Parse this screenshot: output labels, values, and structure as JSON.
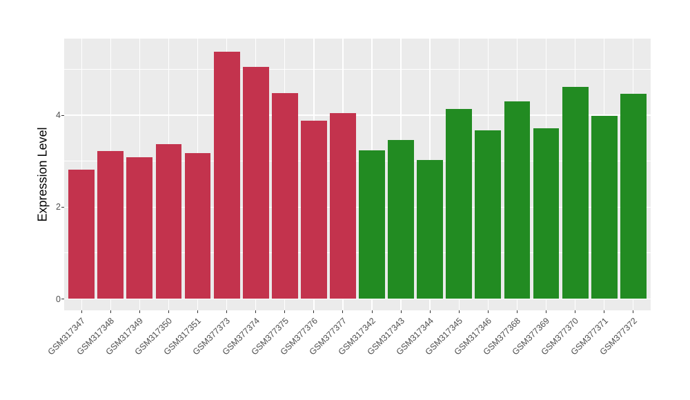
{
  "chart_data": {
    "type": "bar",
    "title": "",
    "xlabel": "",
    "ylabel": "Expression Level",
    "categories": [
      "GSM317347",
      "GSM317348",
      "GSM317349",
      "GSM317350",
      "GSM317351",
      "GSM377373",
      "GSM377374",
      "GSM377375",
      "GSM377376",
      "GSM377377",
      "GSM317342",
      "GSM317343",
      "GSM317344",
      "GSM317345",
      "GSM317346",
      "GSM377368",
      "GSM377369",
      "GSM377370",
      "GSM377371",
      "GSM377372"
    ],
    "values": [
      2.81,
      3.22,
      3.08,
      3.37,
      3.17,
      5.39,
      5.05,
      4.48,
      3.88,
      4.05,
      3.23,
      3.46,
      3.03,
      4.14,
      3.67,
      4.3,
      3.71,
      4.62,
      3.99,
      4.46
    ],
    "colors": [
      "#C3334D",
      "#C3334D",
      "#C3334D",
      "#C3334D",
      "#C3334D",
      "#C3334D",
      "#C3334D",
      "#C3334D",
      "#C3334D",
      "#C3334D",
      "#228B22",
      "#228B22",
      "#228B22",
      "#228B22",
      "#228B22",
      "#228B22",
      "#228B22",
      "#228B22",
      "#228B22",
      "#228B22"
    ],
    "group_colors": {
      "left-group-red": "#C3334D",
      "right-group-green": "#228B22"
    },
    "yticks": [
      0,
      2,
      4
    ],
    "ytick_labels": [
      "0",
      "2",
      "4"
    ],
    "minor_yticks": [
      1,
      3,
      5
    ],
    "ylim": [
      -0.25,
      5.67
    ],
    "grid": "on",
    "legend": "none",
    "theme": {
      "panel_bg": "#EBEBEB",
      "grid_color": "#FFFFFF",
      "axis_text_color": "#4D4D4D",
      "axis_title_color": "#000000",
      "tick_color": "#333333",
      "outer_bg": "#FFFFFF"
    }
  }
}
